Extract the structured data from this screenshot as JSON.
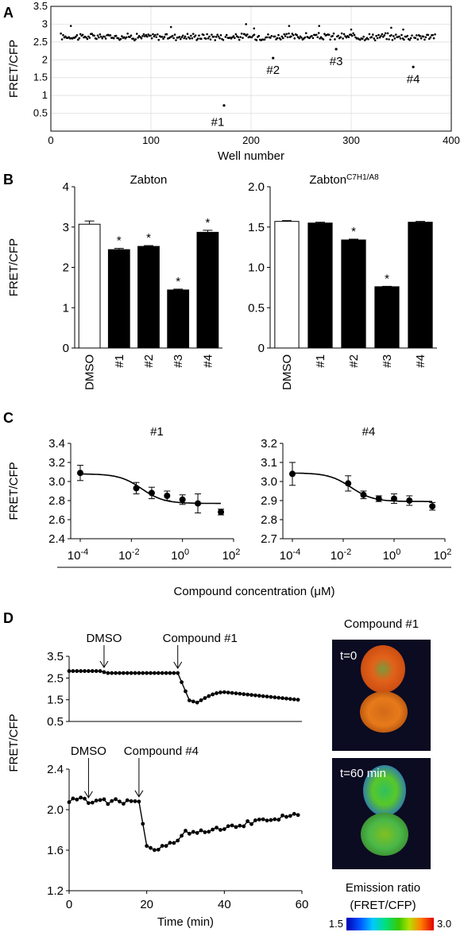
{
  "panels": {
    "A": "A",
    "B": "B",
    "C": "C",
    "D": "D"
  },
  "chart_data": [
    {
      "id": "A",
      "type": "scatter",
      "xlabel": "Well number",
      "ylabel": "FRET/CFP",
      "xlim": [
        0,
        400
      ],
      "ylim": [
        0,
        3.5
      ],
      "xticks": [
        0,
        100,
        200,
        300,
        400
      ],
      "yticks": [
        0.5,
        1,
        1.5,
        2,
        2.5,
        3,
        3.5
      ],
      "grid": true,
      "baseline": 2.65,
      "highlights": [
        {
          "label": "#1",
          "x": 173,
          "y": 0.72
        },
        {
          "label": "#2",
          "x": 222,
          "y": 2.05
        },
        {
          "label": "#3",
          "x": 285,
          "y": 2.3
        },
        {
          "label": "#4",
          "x": 362,
          "y": 1.8
        }
      ],
      "outliers_high": [
        {
          "x": 20,
          "y": 2.95
        },
        {
          "x": 120,
          "y": 2.92
        },
        {
          "x": 195,
          "y": 3.0
        },
        {
          "x": 203,
          "y": 2.88
        },
        {
          "x": 238,
          "y": 2.95
        },
        {
          "x": 268,
          "y": 2.95
        },
        {
          "x": 300,
          "y": 2.85
        },
        {
          "x": 340,
          "y": 2.9
        },
        {
          "x": 352,
          "y": 2.85
        }
      ]
    },
    {
      "id": "B-left",
      "type": "bar",
      "title": "Zabton",
      "ylabel": "FRET/CFP",
      "categories": [
        "DMSO",
        "#1",
        "#2",
        "#3",
        "#4"
      ],
      "values": [
        3.07,
        2.44,
        2.52,
        1.44,
        2.87
      ],
      "errors": [
        0.08,
        0.03,
        0.02,
        0.02,
        0.05
      ],
      "significant": [
        false,
        true,
        true,
        true,
        true
      ],
      "fills": [
        "#ffffff",
        "#000000",
        "#000000",
        "#000000",
        "#000000"
      ],
      "ylim": [
        0,
        4
      ],
      "yticks": [
        0,
        1,
        2,
        3,
        4
      ]
    },
    {
      "id": "B-right",
      "type": "bar",
      "title": "Zabton",
      "title_sup": "C7H1/A8",
      "categories": [
        "DMSO",
        "#1",
        "#2",
        "#3",
        "#4"
      ],
      "values": [
        1.57,
        1.55,
        1.34,
        0.76,
        1.56
      ],
      "errors": [
        0.01,
        0.01,
        0.01,
        0.005,
        0.01
      ],
      "significant": [
        false,
        false,
        true,
        true,
        false
      ],
      "fills": [
        "#ffffff",
        "#000000",
        "#000000",
        "#000000",
        "#000000"
      ],
      "ylim": [
        0,
        2
      ],
      "yticks": [
        "0",
        "0.5",
        "1.0",
        "1.5",
        "2.0"
      ]
    },
    {
      "id": "C-left",
      "type": "scatter",
      "title": "#1",
      "ylabel": "FRET/CFP",
      "xscale": "log",
      "xticks_exp": [
        "-4",
        "-2",
        "0",
        "2"
      ],
      "ylim": [
        2.4,
        3.4
      ],
      "yticks": [
        "2.4",
        "2.6",
        "2.8",
        "3.0",
        "3.2",
        "3.4"
      ],
      "x": [
        0.0001,
        0.0156,
        0.0625,
        0.25,
        1,
        4,
        32
      ],
      "y": [
        3.09,
        2.93,
        2.88,
        2.85,
        2.81,
        2.77,
        2.68
      ],
      "errors": [
        0.08,
        0.06,
        0.06,
        0.05,
        0.05,
        0.1,
        0.03
      ],
      "fit": {
        "top": 3.08,
        "bottom": 2.77,
        "logEC50": -1.6,
        "hill": 1
      }
    },
    {
      "id": "C-right",
      "type": "scatter",
      "title": "#4",
      "xscale": "log",
      "xticks_exp": [
        "-4",
        "-2",
        "0",
        "2"
      ],
      "ylim": [
        2.7,
        3.2
      ],
      "yticks": [
        "2.7",
        "2.8",
        "2.9",
        "3.0",
        "3.1",
        "3.2"
      ],
      "x": [
        0.0001,
        0.0156,
        0.0625,
        0.25,
        1,
        4,
        32
      ],
      "y": [
        3.04,
        2.99,
        2.93,
        2.91,
        2.91,
        2.9,
        2.87
      ],
      "errors": [
        0.06,
        0.04,
        0.02,
        0.015,
        0.025,
        0.025,
        0.02
      ],
      "fit": {
        "top": 3.045,
        "bottom": 2.895,
        "logEC50": -1.7,
        "hill": 1
      }
    },
    {
      "id": "D-top",
      "type": "line",
      "ylabel": "FRET/CFP",
      "xlim": [
        0,
        60
      ],
      "ylim": [
        0.5,
        3.5
      ],
      "yticks": [
        "0.5",
        "1.5",
        "2.5",
        "3.5"
      ],
      "annotations": [
        {
          "label": "DMSO",
          "x": 9
        },
        {
          "label": "Compound #1",
          "x": 28
        }
      ]
    },
    {
      "id": "D-bottom",
      "type": "line",
      "xlabel": "Time (min)",
      "xlim": [
        0,
        60
      ],
      "xticks": [
        0,
        20,
        40,
        60
      ],
      "ylim": [
        1.2,
        2.4
      ],
      "yticks": [
        "1.2",
        "1.6",
        "2.0",
        "2.4"
      ],
      "annotations": [
        {
          "label": "DMSO",
          "x": 5
        },
        {
          "label": "Compound #4",
          "x": 18
        }
      ]
    }
  ],
  "shared_labels": {
    "c_xlabel": "Compound concentration (μM)"
  },
  "images": {
    "title": "Compound #1",
    "frames": [
      "t=0",
      "t=60 min"
    ],
    "colorbar_title_1": "Emission ratio",
    "colorbar_title_2": "(FRET/CFP)",
    "colorbar_min": "1.5",
    "colorbar_max": "3.0"
  },
  "colors": {
    "axis": "#000000",
    "grid": "#d9d9d9",
    "image_background": "#0a0a1e"
  }
}
